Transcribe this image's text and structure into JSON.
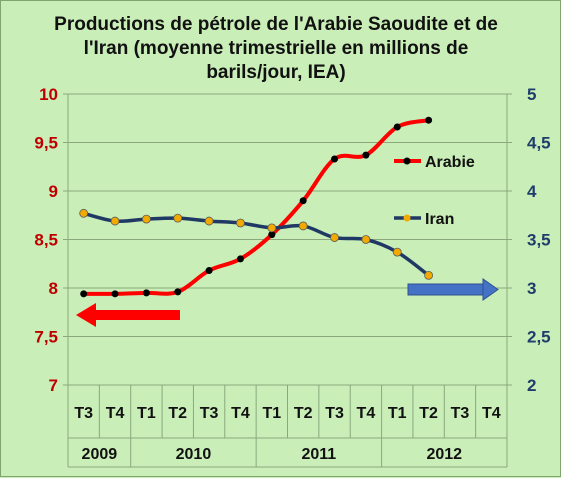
{
  "chart_data": {
    "type": "line",
    "title_lines": [
      "Productions de pétrole de l'Arabie Saoudite et de",
      "l'Iran (moyenne trimestrielle en millions de",
      "barils/jour, IEA)"
    ],
    "categories": [
      "T3",
      "T4",
      "T1",
      "T2",
      "T3",
      "T4",
      "T1",
      "T2",
      "T3",
      "T4",
      "T1",
      "T2",
      "T3",
      "T4"
    ],
    "years": [
      {
        "label": "2009",
        "span": 2
      },
      {
        "label": "2010",
        "span": 4
      },
      {
        "label": "2011",
        "span": 4
      },
      {
        "label": "2012",
        "span": 4
      }
    ],
    "y_left": {
      "min": 7,
      "max": 10,
      "step": 0.5,
      "color": "#c00000",
      "tick_labels": [
        "7",
        "7,5",
        "8",
        "8,5",
        "9",
        "9,5",
        "10"
      ]
    },
    "y_right": {
      "min": 2,
      "max": 5,
      "step": 0.5,
      "color": "#1f3d6b",
      "tick_labels": [
        "2",
        "2,5",
        "3",
        "3,5",
        "4",
        "4,5",
        "5"
      ]
    },
    "grid": "horizontal",
    "legend": {
      "placement": "right"
    },
    "series": [
      {
        "name": "Arabie",
        "axis": "left",
        "color": "#ff0000",
        "marker_color": "#000000",
        "values": [
          7.94,
          7.94,
          7.95,
          7.96,
          8.18,
          8.3,
          8.55,
          8.9,
          9.33,
          9.37,
          9.66,
          9.73,
          null,
          null
        ]
      },
      {
        "name": "Iran",
        "axis": "right",
        "color": "#1f3864",
        "marker_color": "#f2a900",
        "values": [
          3.77,
          3.69,
          3.71,
          3.72,
          3.69,
          3.67,
          3.62,
          3.64,
          3.52,
          3.5,
          3.37,
          3.13,
          null,
          null
        ]
      }
    ],
    "annotations": [
      {
        "kind": "arrow-left",
        "color": "#ff0000",
        "meaning": "left axis"
      },
      {
        "kind": "arrow-right",
        "color": "#4472c4",
        "meaning": "right axis"
      }
    ]
  }
}
